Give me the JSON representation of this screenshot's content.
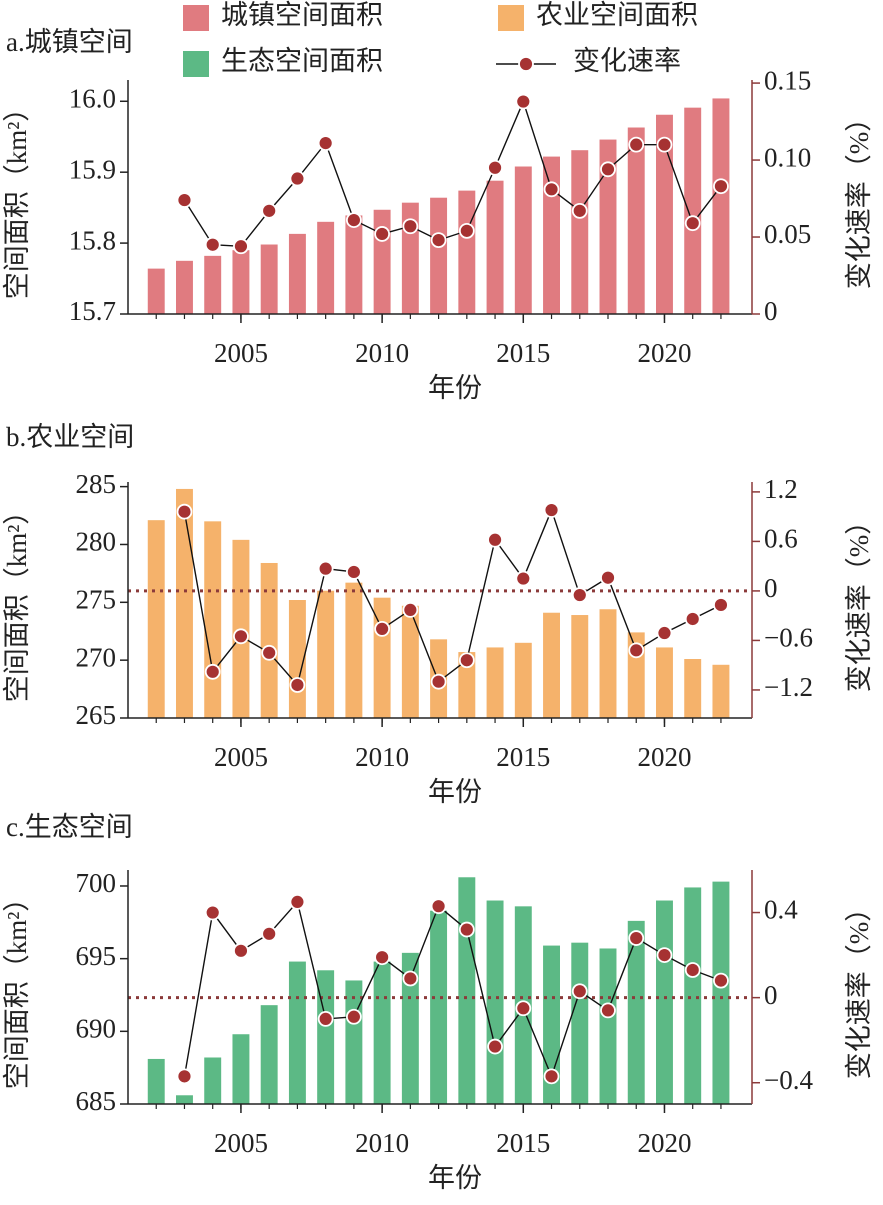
{
  "chart_data": [
    {
      "type": "bar",
      "title": "a.城镇空间",
      "xlabel": "年份",
      "ylabel": "空间面积（km²）",
      "y2label": "变化速率（%）",
      "x": [
        2002,
        2003,
        2004,
        2005,
        2006,
        2007,
        2008,
        2009,
        2010,
        2011,
        2012,
        2013,
        2014,
        2015,
        2016,
        2017,
        2018,
        2019,
        2020,
        2021,
        2022
      ],
      "series": [
        {
          "name": "城镇空间面积",
          "color": "#e07b80",
          "values": [
            15.764,
            15.775,
            15.782,
            15.79,
            15.798,
            15.813,
            15.83,
            15.839,
            15.847,
            15.857,
            15.864,
            15.874,
            15.888,
            15.908,
            15.922,
            15.931,
            15.946,
            15.963,
            15.981,
            15.991,
            16.004
          ]
        },
        {
          "name": "变化速率",
          "type": "line",
          "axis": "y2",
          "color": "#a63232",
          "values": [
            null,
            0.074,
            0.045,
            0.044,
            0.067,
            0.088,
            0.111,
            0.061,
            0.052,
            0.057,
            0.048,
            0.054,
            0.095,
            0.138,
            0.081,
            0.067,
            0.094,
            0.11,
            0.11,
            0.059,
            0.083
          ]
        }
      ],
      "xlim": [
        2001,
        2023.1
      ],
      "xticks": [
        2005,
        2010,
        2015,
        2020
      ],
      "ylim": [
        15.7,
        16.03
      ],
      "yticks": [
        15.7,
        15.8,
        15.9,
        {
          "value": 16,
          "label": "16.0"
        }
      ],
      "y2lim": [
        0,
        0.152
      ],
      "y2ticks": [
        0,
        0.05,
        {
          "value": 0.1,
          "label": "0.10"
        },
        0.15
      ],
      "y2_zero_line": false
    },
    {
      "type": "bar",
      "title": "b.农业空间",
      "xlabel": "年份",
      "ylabel": "空间面积（km²）",
      "y2label": "变化速率（%）",
      "x": [
        2002,
        2003,
        2004,
        2005,
        2006,
        2007,
        2008,
        2009,
        2010,
        2011,
        2012,
        2013,
        2014,
        2015,
        2016,
        2017,
        2018,
        2019,
        2020,
        2021,
        2022
      ],
      "series": [
        {
          "name": "农业空间面积",
          "color": "#f5b26b",
          "values": [
            282.1,
            284.8,
            282.0,
            280.4,
            278.4,
            275.2,
            276.0,
            276.7,
            275.4,
            274.7,
            271.8,
            270.7,
            271.1,
            271.5,
            274.1,
            273.9,
            274.4,
            272.4,
            271.1,
            270.1,
            269.6
          ]
        },
        {
          "name": "变化速率",
          "type": "line",
          "axis": "y2",
          "color": "#a63232",
          "values": [
            null,
            0.96,
            -0.98,
            -0.55,
            -0.75,
            -1.14,
            0.27,
            0.23,
            -0.46,
            -0.23,
            -1.1,
            -0.84,
            0.62,
            0.15,
            0.98,
            -0.05,
            0.16,
            -0.72,
            -0.51,
            -0.34,
            -0.17
          ]
        }
      ],
      "xlim": [
        2001,
        2023.1
      ],
      "xticks": [
        2005,
        2010,
        2015,
        2020
      ],
      "ylim": [
        265,
        285.4
      ],
      "yticks": [
        265,
        270,
        275,
        280,
        285
      ],
      "y2lim": [
        -1.54,
        1.32
      ],
      "y2ticks": [
        {
          "value": -1.2,
          "label": "−1.2"
        },
        {
          "value": -0.6,
          "label": "−0.6"
        },
        0,
        0.6,
        1.2
      ],
      "y2_zero_line": true
    },
    {
      "type": "bar",
      "title": "c.生态空间",
      "xlabel": "年份",
      "ylabel": "空间面积（km²）",
      "y2label": "变化速率（%）",
      "x": [
        2002,
        2003,
        2004,
        2005,
        2006,
        2007,
        2008,
        2009,
        2010,
        2011,
        2012,
        2013,
        2014,
        2015,
        2016,
        2017,
        2018,
        2019,
        2020,
        2021,
        2022
      ],
      "series": [
        {
          "name": "生态空间面积",
          "color": "#5cb985",
          "values": [
            688.1,
            685.6,
            688.2,
            689.8,
            691.8,
            694.8,
            694.2,
            693.5,
            694.8,
            695.4,
            698.3,
            700.6,
            699.0,
            698.6,
            695.9,
            696.1,
            695.7,
            697.6,
            699.0,
            699.9,
            700.3
          ]
        },
        {
          "name": "变化速率",
          "type": "line",
          "axis": "y2",
          "color": "#a63232",
          "values": [
            null,
            -0.37,
            0.4,
            0.22,
            0.3,
            0.45,
            -0.1,
            -0.09,
            0.19,
            0.09,
            0.43,
            0.32,
            -0.23,
            -0.05,
            -0.37,
            0.03,
            -0.06,
            0.28,
            0.2,
            0.13,
            0.08
          ]
        }
      ],
      "xlim": [
        2001,
        2023.1
      ],
      "xticks": [
        2005,
        2010,
        2015,
        2020
      ],
      "ylim": [
        685,
        701.1
      ],
      "yticks": [
        685,
        690,
        695,
        700
      ],
      "y2lim": [
        -0.5,
        0.6
      ],
      "y2ticks": [
        {
          "value": -0.4,
          "label": "−0.4"
        },
        0,
        0.4
      ],
      "y2_zero_line": true
    }
  ]
}
